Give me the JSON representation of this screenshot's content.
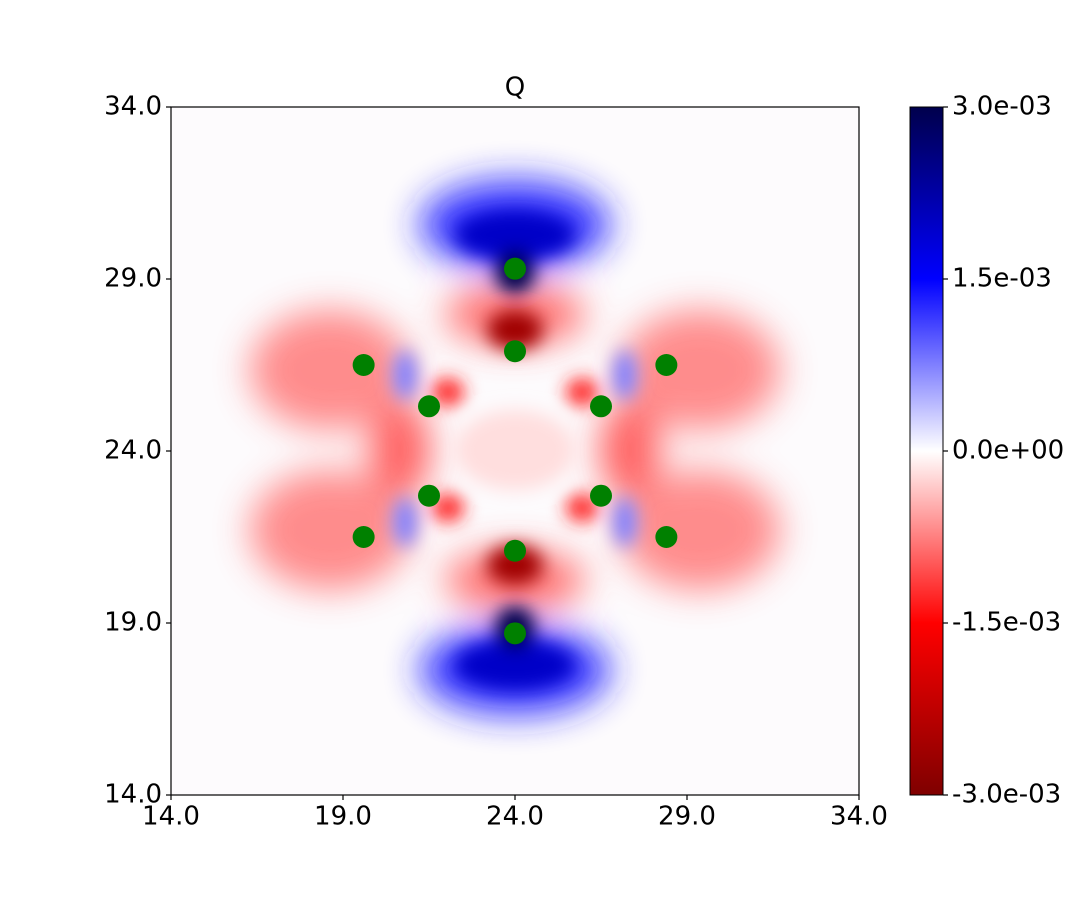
{
  "chart_data": {
    "type": "scatter",
    "title": "Q",
    "x": [
      24.0,
      24.0,
      19.6,
      28.4,
      21.5,
      26.5,
      21.5,
      26.5,
      19.6,
      28.4,
      24.0,
      24.0
    ],
    "values": [
      29.3,
      26.9,
      26.5,
      26.5,
      25.3,
      25.3,
      22.7,
      22.7,
      21.5,
      21.5,
      21.1,
      18.7
    ],
    "color": "#008000",
    "xlim": [
      14,
      34
    ],
    "ylim": [
      14,
      34
    ],
    "xticks": [
      {
        "value": 14,
        "label": "14.0"
      },
      {
        "value": 19,
        "label": "19.0"
      },
      {
        "value": 24,
        "label": "24.0"
      },
      {
        "value": 29,
        "label": "29.0"
      },
      {
        "value": 34,
        "label": "34.0"
      }
    ],
    "yticks": [
      {
        "value": 14,
        "label": "14.0"
      },
      {
        "value": 19,
        "label": "19.0"
      },
      {
        "value": 24,
        "label": "24.0"
      },
      {
        "value": 29,
        "label": "29.0"
      },
      {
        "value": 34,
        "label": "34.0"
      }
    ],
    "colorbar": {
      "lim": [
        -0.003,
        0.003
      ],
      "ticks": [
        {
          "value": 0.003,
          "label": "3.0e-03"
        },
        {
          "value": 0.0015,
          "label": "1.5e-03"
        },
        {
          "value": 0,
          "label": "0.0e+00"
        },
        {
          "value": -0.0015,
          "label": "-1.5e-03"
        },
        {
          "value": -0.003,
          "label": "-3.0e-03"
        }
      ],
      "colors": [
        "#7f0000",
        "#ff0000",
        "#ffffff",
        "#0000ff",
        "#00004c"
      ]
    }
  }
}
